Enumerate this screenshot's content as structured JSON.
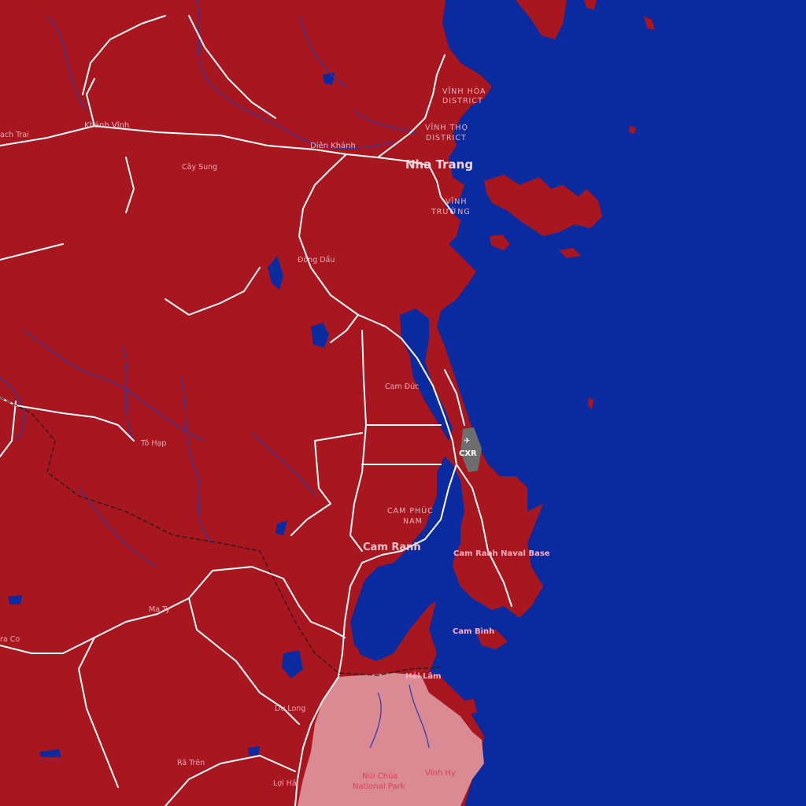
{
  "colors": {
    "land": "#a8161f",
    "sea": "#0a2aa0",
    "road": "#ffffff",
    "park": "#d98a92",
    "airport": "#6e6e6e"
  },
  "labels": {
    "vinh_hoa_district": [
      "VĨNH HÒA",
      "DISTRICT"
    ],
    "vinh_tho_district": [
      "VĨNH THỌ",
      "DISTRICT"
    ],
    "vinh_truong": [
      "VĨNH",
      "TRƯỜNG"
    ],
    "cam_phuc_nam": [
      "CAM PHÚC",
      "NAM"
    ],
    "nha_trang": "Nha Trang",
    "cam_ranh": "Cam Ranh",
    "khanh_vinh": "Khánh Vĩnh",
    "dien_khanh": "Diên Khánh",
    "cay_sung": "Cây Sung",
    "dong_dau": "Đồng Dầu",
    "cam_duc": "Cam Đức",
    "to_hap": "Tô Hạp",
    "ma_ty": "Ma Ty",
    "du_long": "Du Long",
    "ra_tren": "Rã Trên",
    "loi_hai": "Lợi Hải",
    "hai_lam": "Hải Lâm",
    "cam_binh": "Cam Bình",
    "cam_ranh_naval_base": "Cam Ranh Naval Base",
    "airport_code": "CXR",
    "nui_chua_park": [
      "Núi Chúa",
      "National Park"
    ],
    "vinh_hy": "Vĩnh Hy",
    "edge_left_1": "ạch Trai",
    "edge_left_2": "ra Co"
  },
  "icons": {
    "airport": "airplane-icon"
  }
}
